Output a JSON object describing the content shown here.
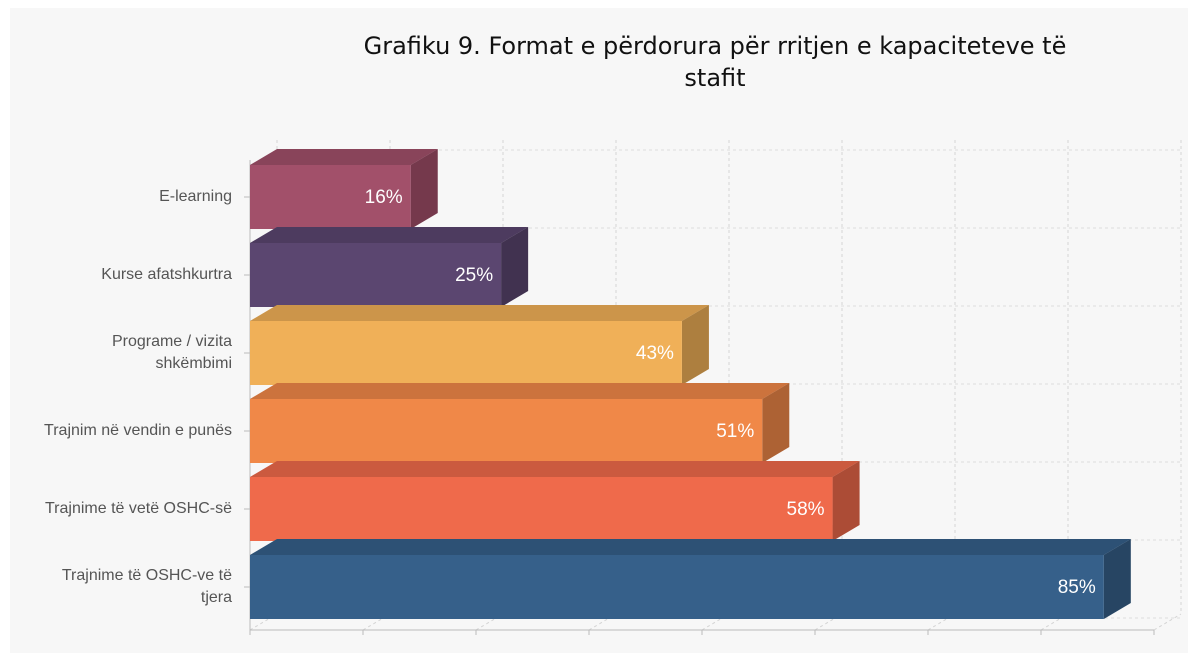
{
  "chart_data": {
    "type": "bar3d_horizontal",
    "title": "Grafiku 9. Format e përdorura për rritjen e kapaciteteve të stafit",
    "categories": [
      "E-learning",
      "Kurse afatshkurtra",
      "Programe / vizita shkëmbimi",
      "Trajnim në vendin e punës",
      "Trajnime të vetë OSHC-së",
      "Trajnime të OSHC-ve të tjera"
    ],
    "values": [
      16,
      25,
      43,
      51,
      58,
      85
    ],
    "value_labels": [
      "16%",
      "25%",
      "43%",
      "51%",
      "58%",
      "85%"
    ],
    "colors": [
      "#a2506a",
      "#5b4670",
      "#f0b058",
      "#f08848",
      "#ef6a4b",
      "#36608a"
    ],
    "xlim": [
      0,
      90
    ],
    "xticks": [
      0,
      11.25,
      22.5,
      33.75,
      45,
      56.25,
      67.5,
      78.75,
      90
    ],
    "grid": true
  }
}
